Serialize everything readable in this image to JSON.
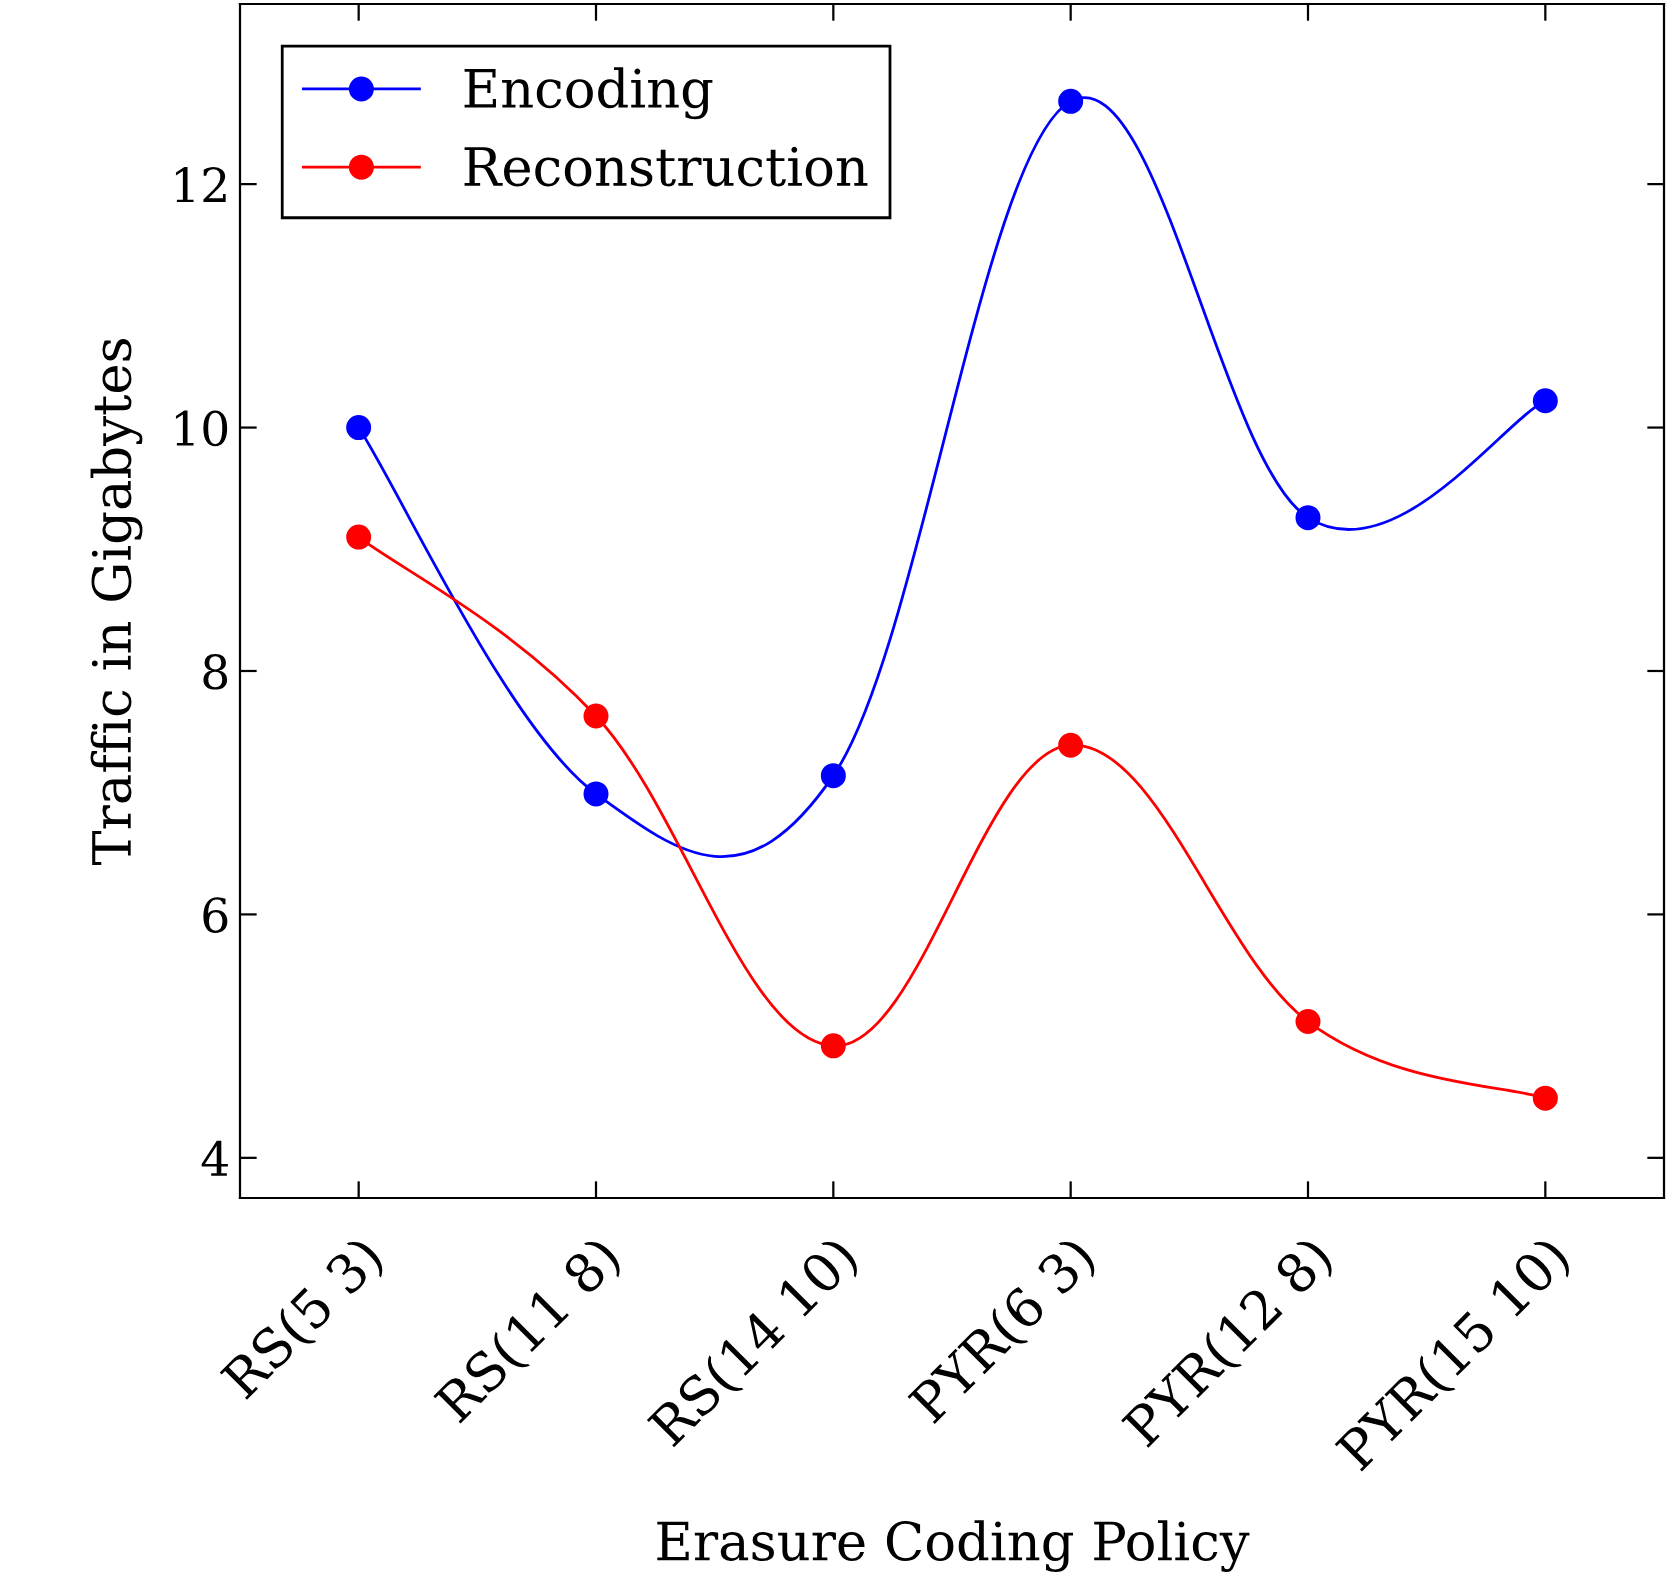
{
  "chart_data": {
    "type": "line",
    "xlabel": "Erasure Coding Policy",
    "ylabel": "Traffic in Gigabytes",
    "categories": [
      "RS(5 3)",
      "RS(11 8)",
      "RS(14 10)",
      "PYR(6 3)",
      "PYR(12 8)",
      "PYR(15 10)"
    ],
    "series": [
      {
        "name": "Encoding",
        "color": "#0000ff",
        "values": [
          10.0,
          6.99,
          7.14,
          12.68,
          9.26,
          10.22
        ]
      },
      {
        "name": "Reconstruction",
        "color": "#ff0000",
        "values": [
          9.1,
          7.63,
          4.92,
          7.39,
          5.12,
          4.49
        ]
      }
    ],
    "ylim": [
      3.67,
      13.48
    ],
    "yticks": [
      4,
      6,
      8,
      10,
      12
    ],
    "grid": false,
    "legend": "top left",
    "marker": "circle",
    "line_style": "solid"
  }
}
